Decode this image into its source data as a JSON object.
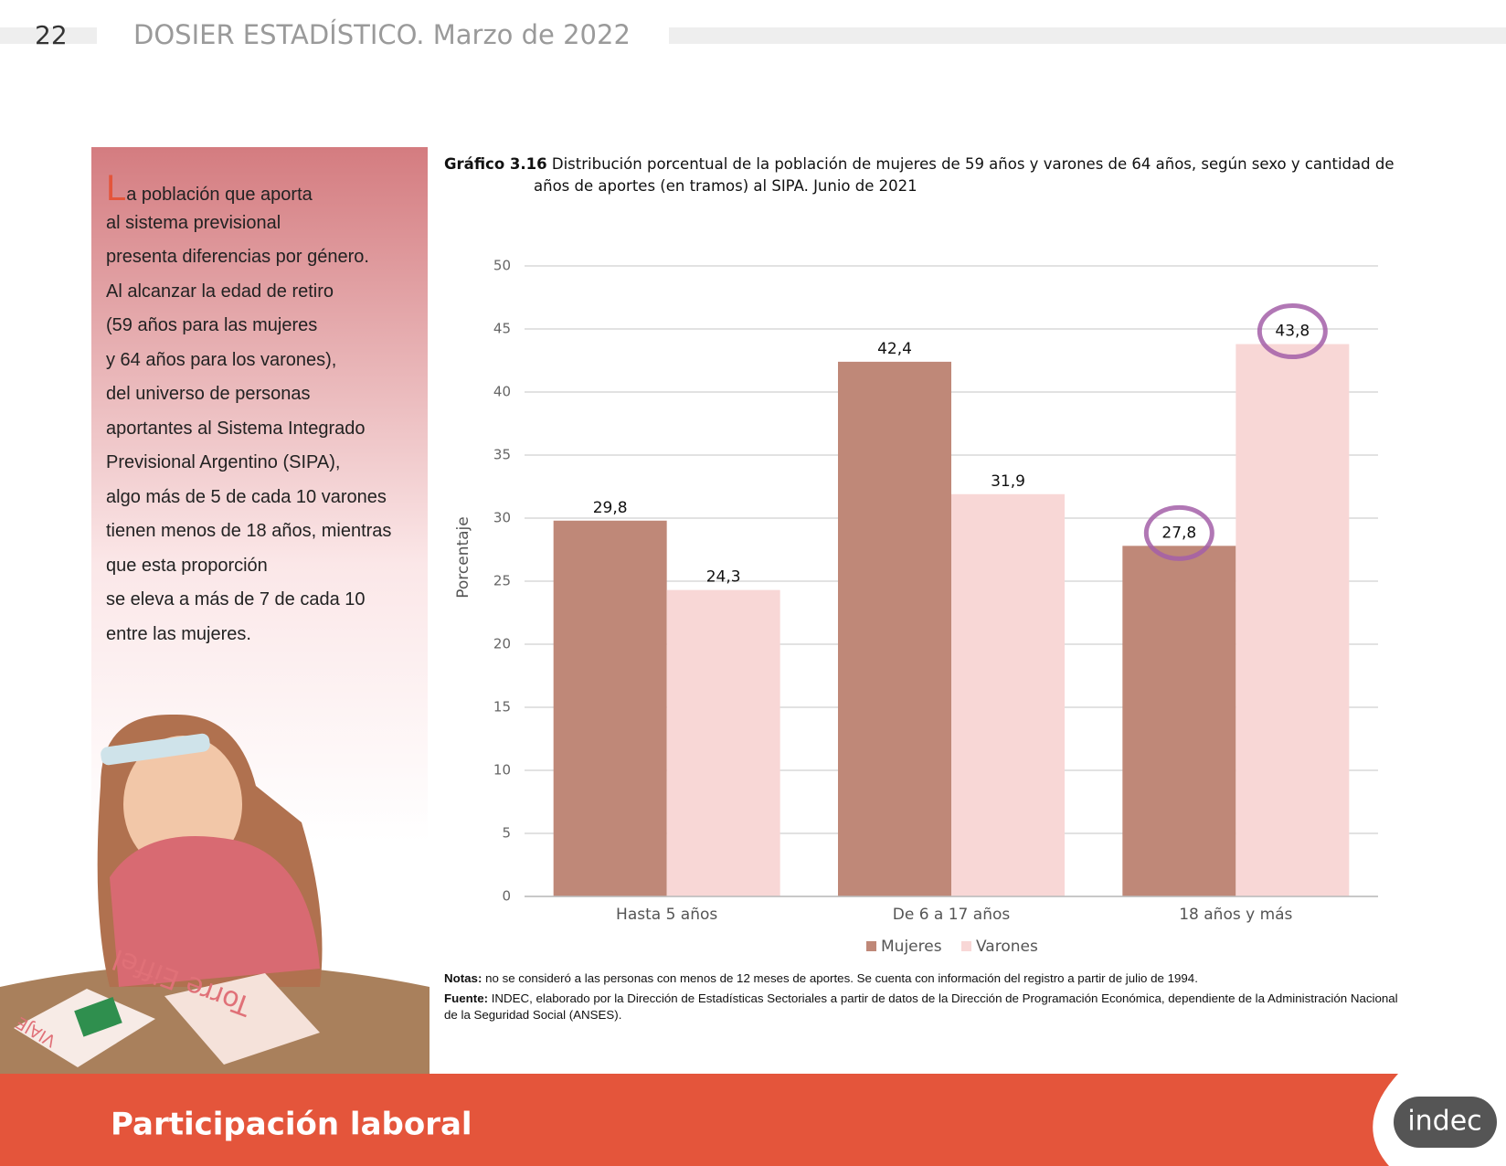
{
  "header": {
    "page": "22",
    "title": "DOSIER ESTADÍSTICO. Marzo de 2022"
  },
  "sidebar": {
    "lines": [
      "La población que aporta",
      "al sistema previsional",
      "presenta diferencias por género.",
      "Al alcanzar la edad de retiro",
      "(59 años para las mujeres",
      "y 64 años para los varones),",
      "del universo de personas",
      "aportantes al Sistema Integrado",
      "Previsional Argentino (SIPA),",
      "algo más de 5 de cada 10 varones",
      "tienen menos de 18 años, mientras",
      "que esta proporción",
      "se eleva a más de 7 de cada 10",
      "entre las mujeres."
    ]
  },
  "illustration": {
    "texts": [
      "Torre Eiffel",
      "VIAJE"
    ]
  },
  "chart_data": {
    "type": "bar",
    "title_label": "Gráfico 3.16",
    "title": "Distribución porcentual de la población de mujeres de 59 años y varones de 64 años, según sexo y cantidad de",
    "title_line2": "años de aportes (en tramos) al SIPA. Junio de 2021",
    "y_label": "Porcentaje",
    "categories": [
      "Hasta 5 años",
      "De 6 a 17 años",
      "18 años y más"
    ],
    "series": [
      {
        "name": "Mujeres",
        "color": "#bf8878",
        "values": [
          29.8,
          42.4,
          27.8
        ],
        "value_labels": [
          "29,8",
          "42,4",
          "27,8"
        ]
      },
      {
        "name": "Varones",
        "color": "#f8d7d6",
        "values": [
          24.3,
          31.9,
          43.8
        ],
        "value_labels": [
          "24,3",
          "31,9",
          "43,8"
        ]
      }
    ],
    "ylim": [
      0,
      50
    ],
    "yticks": [
      0,
      5,
      10,
      15,
      20,
      25,
      30,
      35,
      40,
      45,
      50
    ],
    "grid": true,
    "legend": "bottom"
  },
  "notes": {
    "notas_label": "Notas:",
    "notas": "no se consideró a las personas con menos de 12 meses de aportes. Se cuenta con información del registro a partir de julio de 1994.",
    "fuente_label": "Fuente:",
    "fuente": "INDEC, elaborado por la Dirección de Estadísticas Sectoriales a partir de datos de la Dirección de Programación Económica, dependiente de la Administración Nacional de la Seguridad Social (ANSES)."
  },
  "footer": {
    "section": "Participación laboral",
    "logo": "indec"
  }
}
